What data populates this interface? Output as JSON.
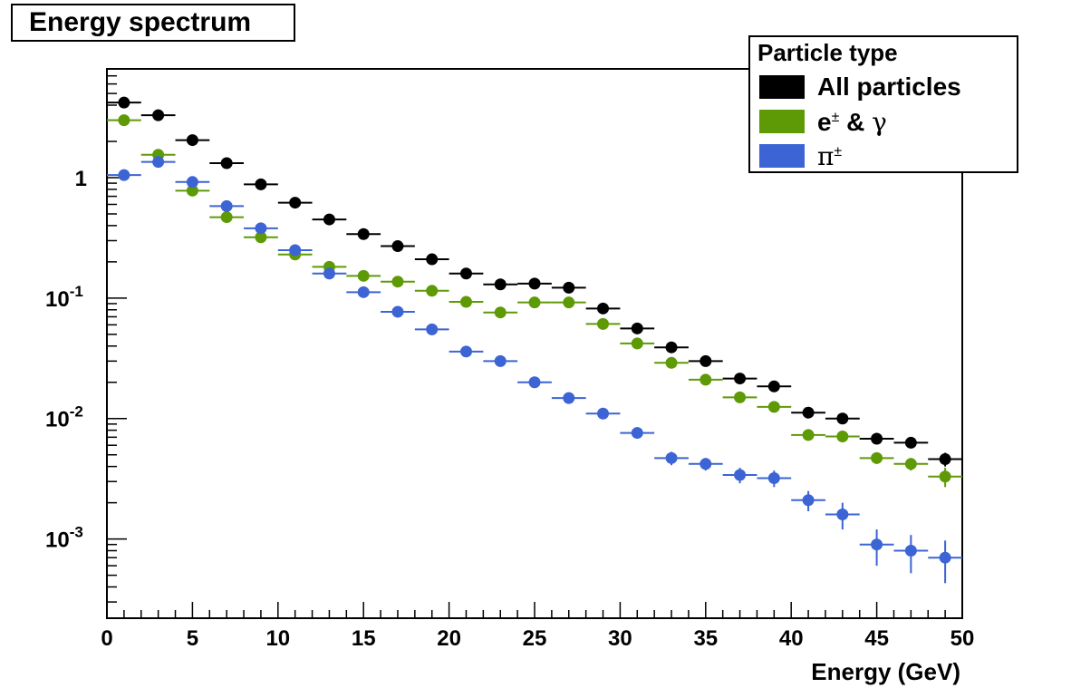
{
  "chart_data": {
    "type": "scatter",
    "title": "Energy spectrum",
    "xlabel": "Energy (GeV)",
    "ylabel": "",
    "xlim": [
      0,
      50
    ],
    "ylim": [
      0.00022,
      8
    ],
    "yscale": "log",
    "grid": false,
    "legend_title": "Particle type",
    "legend_position": "top-right",
    "x_ticks": [
      "0",
      "5",
      "10",
      "15",
      "20",
      "25",
      "30",
      "35",
      "40",
      "45",
      "50"
    ],
    "y_ticks": [
      {
        "value": 1,
        "base": "1",
        "exp": ""
      },
      {
        "value": 0.1,
        "base": "10",
        "exp": "-1"
      },
      {
        "value": 0.01,
        "base": "10",
        "exp": "-2"
      },
      {
        "value": 0.001,
        "base": "10",
        "exp": "-3"
      }
    ],
    "bin_width": 2,
    "x": [
      1,
      3,
      5,
      7,
      9,
      11,
      13,
      15,
      17,
      19,
      21,
      23,
      25,
      27,
      29,
      31,
      33,
      35,
      37,
      39,
      41,
      43,
      45,
      47,
      49
    ],
    "series": [
      {
        "name": "All particles",
        "label_main": "All particles",
        "label_sup": "",
        "label_greek": "",
        "color": "#000000",
        "values": [
          4.2,
          3.3,
          2.05,
          1.32,
          0.88,
          0.62,
          0.45,
          0.34,
          0.27,
          0.21,
          0.16,
          0.13,
          0.132,
          0.122,
          0.082,
          0.056,
          0.039,
          0.03,
          0.0215,
          0.0185,
          0.0112,
          0.01,
          0.0068,
          0.0063,
          0.0046
        ],
        "errors": [
          0,
          0,
          0,
          0,
          0,
          0,
          0,
          0,
          0,
          0,
          0,
          0,
          0,
          0,
          0,
          0,
          0,
          0,
          0,
          0,
          0,
          0,
          0,
          0.0006,
          0.0006
        ]
      },
      {
        "name": "e± & γ",
        "label_main": "e",
        "label_sup": "±",
        "label_greek": "γ",
        "color": "#5e9a06",
        "values": [
          3.0,
          1.55,
          0.78,
          0.47,
          0.32,
          0.23,
          0.182,
          0.153,
          0.137,
          0.115,
          0.093,
          0.076,
          0.092,
          0.092,
          0.061,
          0.042,
          0.029,
          0.021,
          0.015,
          0.0125,
          0.0073,
          0.0071,
          0.0047,
          0.0042,
          0.0033
        ],
        "errors": [
          0,
          0,
          0,
          0,
          0,
          0,
          0,
          0,
          0,
          0,
          0,
          0,
          0,
          0,
          0,
          0,
          0,
          0,
          0,
          0,
          0,
          0,
          0.0005,
          0.0005,
          0.0006
        ]
      },
      {
        "name": "π±",
        "label_main": "",
        "label_sup": "±",
        "label_greek": "π",
        "color": "#3c64d4",
        "values": [
          1.05,
          1.35,
          0.92,
          0.58,
          0.38,
          0.25,
          0.16,
          0.112,
          0.077,
          0.055,
          0.036,
          0.03,
          0.02,
          0.0148,
          0.011,
          0.0076,
          0.0047,
          0.0042,
          0.0034,
          0.0032,
          0.0021,
          0.0016,
          0.0009,
          0.0008,
          0.0007
        ],
        "errors": [
          0,
          0,
          0,
          0,
          0,
          0,
          0,
          0,
          0,
          0,
          0,
          0,
          0,
          0,
          0,
          0,
          0.0006,
          0.0005,
          0.0005,
          0.0005,
          0.0004,
          0.0004,
          0.0003,
          0.00028,
          0.00027
        ]
      }
    ]
  }
}
